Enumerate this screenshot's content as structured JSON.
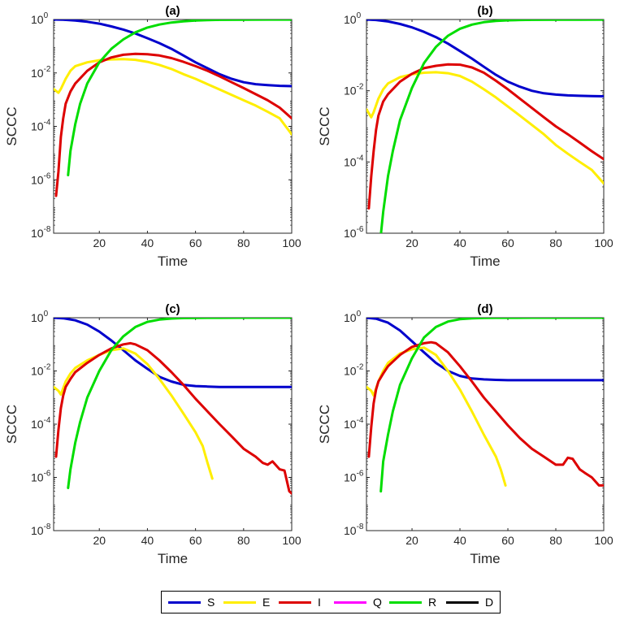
{
  "colors": {
    "S": "#0000cc",
    "E": "#ffee00",
    "I": "#dd0000",
    "Q": "#ff00ff",
    "R": "#00dd00",
    "D": "#000000"
  },
  "legend": [
    {
      "key": "S",
      "label": "S"
    },
    {
      "key": "E",
      "label": "E"
    },
    {
      "key": "I",
      "label": "I"
    },
    {
      "key": "Q",
      "label": "Q"
    },
    {
      "key": "R",
      "label": "R"
    },
    {
      "key": "D",
      "label": "D"
    }
  ],
  "chart_data": [
    {
      "type": "line",
      "title": "(a)",
      "xlabel": "Time",
      "ylabel": "SCCC",
      "xlim": [
        1,
        100
      ],
      "ylim_exp": [
        -8,
        0
      ],
      "xticks": [
        20,
        40,
        60,
        80,
        100
      ],
      "yticks_exp": [
        -8,
        -6,
        -4,
        -2,
        0
      ],
      "series": [
        {
          "name": "S",
          "x": [
            1,
            5,
            10,
            15,
            20,
            25,
            30,
            35,
            40,
            45,
            50,
            55,
            60,
            65,
            70,
            75,
            80,
            85,
            90,
            95,
            100
          ],
          "y": [
            1,
            0.98,
            0.92,
            0.82,
            0.7,
            0.55,
            0.42,
            0.3,
            0.2,
            0.13,
            0.08,
            0.045,
            0.025,
            0.015,
            0.009,
            0.006,
            0.0045,
            0.0038,
            0.0035,
            0.0033,
            0.0032
          ]
        },
        {
          "name": "E",
          "x": [
            1,
            3,
            4,
            6,
            8,
            10,
            15,
            20,
            25,
            30,
            35,
            40,
            45,
            50,
            55,
            60,
            65,
            70,
            75,
            80,
            85,
            90,
            95,
            100
          ],
          "y": [
            0.0025,
            0.0018,
            0.0025,
            0.006,
            0.012,
            0.018,
            0.025,
            0.03,
            0.032,
            0.033,
            0.031,
            0.026,
            0.02,
            0.014,
            0.009,
            0.006,
            0.0038,
            0.0024,
            0.0015,
            0.00095,
            0.0006,
            0.00035,
            0.0002,
            5e-05
          ]
        },
        {
          "name": "I",
          "x": [
            2,
            3,
            4,
            5,
            6,
            8,
            10,
            15,
            20,
            25,
            30,
            35,
            40,
            45,
            50,
            55,
            60,
            65,
            70,
            75,
            80,
            85,
            90,
            95,
            100
          ],
          "y": [
            2.5e-07,
            2e-06,
            4e-05,
            0.0002,
            0.0007,
            0.002,
            0.004,
            0.012,
            0.025,
            0.038,
            0.048,
            0.052,
            0.05,
            0.045,
            0.036,
            0.026,
            0.018,
            0.012,
            0.0075,
            0.0045,
            0.0027,
            0.0016,
            0.00095,
            0.0005,
            0.0002
          ]
        },
        {
          "name": "R",
          "x": [
            7,
            8,
            10,
            12,
            15,
            20,
            25,
            30,
            35,
            40,
            45,
            50,
            55,
            60,
            65,
            70,
            80,
            90,
            100
          ],
          "y": [
            1.5e-06,
            1.2e-05,
            0.00012,
            0.0007,
            0.004,
            0.025,
            0.08,
            0.18,
            0.33,
            0.5,
            0.65,
            0.77,
            0.86,
            0.92,
            0.95,
            0.97,
            0.985,
            0.99,
            0.992
          ]
        }
      ]
    },
    {
      "type": "line",
      "title": "(b)",
      "xlabel": "Time",
      "ylabel": "SCCC",
      "xlim": [
        1,
        100
      ],
      "ylim_exp": [
        -6,
        0
      ],
      "xticks": [
        20,
        40,
        60,
        80,
        100
      ],
      "yticks_exp": [
        -6,
        -4,
        -2,
        0
      ],
      "series": [
        {
          "name": "S",
          "x": [
            1,
            5,
            10,
            15,
            20,
            25,
            30,
            35,
            40,
            45,
            50,
            55,
            60,
            65,
            70,
            75,
            80,
            85,
            90,
            95,
            100
          ],
          "y": [
            1,
            0.97,
            0.88,
            0.75,
            0.6,
            0.45,
            0.32,
            0.21,
            0.13,
            0.08,
            0.047,
            0.028,
            0.018,
            0.013,
            0.01,
            0.0085,
            0.0078,
            0.0074,
            0.0072,
            0.0071,
            0.007
          ]
        },
        {
          "name": "E",
          "x": [
            1,
            3,
            4,
            6,
            8,
            10,
            15,
            20,
            25,
            30,
            35,
            40,
            45,
            50,
            55,
            60,
            65,
            70,
            75,
            80,
            85,
            90,
            95,
            100
          ],
          "y": [
            0.003,
            0.0018,
            0.0025,
            0.006,
            0.011,
            0.016,
            0.024,
            0.029,
            0.032,
            0.033,
            0.031,
            0.026,
            0.018,
            0.011,
            0.0065,
            0.0036,
            0.002,
            0.0011,
            0.0006,
            0.0003,
            0.00017,
            0.0001,
            6e-05,
            2.5e-05
          ]
        },
        {
          "name": "I",
          "x": [
            2,
            3,
            4,
            5,
            6,
            8,
            10,
            15,
            20,
            25,
            30,
            35,
            40,
            45,
            50,
            55,
            60,
            65,
            70,
            75,
            80,
            85,
            90,
            95,
            100
          ],
          "y": [
            5e-06,
            4e-05,
            0.0002,
            0.0008,
            0.002,
            0.005,
            0.008,
            0.018,
            0.03,
            0.043,
            0.05,
            0.055,
            0.054,
            0.045,
            0.032,
            0.019,
            0.011,
            0.006,
            0.0033,
            0.0018,
            0.001,
            0.0006,
            0.00035,
            0.0002,
            0.00012
          ]
        },
        {
          "name": "R",
          "x": [
            7,
            8,
            10,
            12,
            15,
            20,
            25,
            30,
            35,
            40,
            45,
            50,
            55,
            60,
            65,
            70,
            80,
            90,
            100
          ],
          "y": [
            9e-07,
            4e-06,
            4e-05,
            0.0002,
            0.0015,
            0.012,
            0.06,
            0.17,
            0.35,
            0.55,
            0.72,
            0.84,
            0.91,
            0.95,
            0.97,
            0.98,
            0.99,
            0.992,
            0.993
          ]
        }
      ]
    },
    {
      "type": "line",
      "title": "(c)",
      "xlabel": "Time",
      "ylabel": "SCCC",
      "xlim": [
        1,
        100
      ],
      "ylim_exp": [
        -8,
        0
      ],
      "xticks": [
        20,
        40,
        60,
        80,
        100
      ],
      "yticks_exp": [
        -8,
        -6,
        -4,
        -2,
        0
      ],
      "series": [
        {
          "name": "S",
          "x": [
            1,
            5,
            10,
            15,
            20,
            25,
            30,
            35,
            40,
            45,
            50,
            55,
            60,
            65,
            70,
            80,
            90,
            100
          ],
          "y": [
            1,
            0.95,
            0.8,
            0.55,
            0.3,
            0.14,
            0.06,
            0.025,
            0.012,
            0.006,
            0.004,
            0.003,
            0.0027,
            0.0026,
            0.0025,
            0.0025,
            0.0025,
            0.0025
          ]
        },
        {
          "name": "E",
          "x": [
            1,
            3,
            4,
            6,
            8,
            10,
            15,
            20,
            25,
            30,
            35,
            40,
            45,
            50,
            55,
            60,
            63,
            65,
            67
          ],
          "y": [
            0.0025,
            0.0018,
            0.0013,
            0.004,
            0.008,
            0.013,
            0.025,
            0.04,
            0.06,
            0.07,
            0.045,
            0.018,
            0.005,
            0.0012,
            0.00025,
            5e-05,
            1.5e-05,
            3.5e-06,
            9e-07
          ]
        },
        {
          "name": "I",
          "x": [
            2,
            3,
            4,
            5,
            6,
            8,
            10,
            15,
            20,
            25,
            30,
            33,
            35,
            40,
            45,
            50,
            55,
            60,
            65,
            70,
            75,
            80,
            85,
            88,
            90,
            92,
            95,
            97,
            99,
            100
          ],
          "y": [
            6e-06,
            6e-05,
            0.0004,
            0.0012,
            0.0025,
            0.005,
            0.009,
            0.02,
            0.04,
            0.07,
            0.1,
            0.11,
            0.1,
            0.06,
            0.025,
            0.009,
            0.003,
            0.0009,
            0.0003,
            0.0001,
            3.5e-05,
            1.2e-05,
            6e-06,
            3.5e-06,
            3e-06,
            4e-06,
            2e-06,
            1.8e-06,
            3e-07,
            2.5e-07
          ]
        },
        {
          "name": "R",
          "x": [
            7,
            8,
            10,
            12,
            15,
            20,
            25,
            30,
            35,
            40,
            45,
            50,
            55,
            60,
            65,
            70,
            80,
            90,
            100
          ],
          "y": [
            4e-07,
            2e-06,
            2e-05,
            0.00012,
            0.001,
            0.01,
            0.06,
            0.2,
            0.45,
            0.7,
            0.85,
            0.93,
            0.97,
            0.985,
            0.99,
            0.995,
            0.997,
            0.998,
            0.998
          ]
        }
      ]
    },
    {
      "type": "line",
      "title": "(d)",
      "xlabel": "Time",
      "ylabel": "SCCC",
      "xlim": [
        1,
        100
      ],
      "ylim_exp": [
        -8,
        0
      ],
      "xticks": [
        20,
        40,
        60,
        80,
        100
      ],
      "yticks_exp": [
        -8,
        -6,
        -4,
        -2,
        0
      ],
      "series": [
        {
          "name": "S",
          "x": [
            1,
            5,
            10,
            15,
            20,
            25,
            30,
            35,
            40,
            45,
            50,
            55,
            60,
            70,
            80,
            90,
            100
          ],
          "y": [
            1,
            0.92,
            0.65,
            0.33,
            0.13,
            0.05,
            0.02,
            0.01,
            0.0065,
            0.0052,
            0.0048,
            0.0046,
            0.0045,
            0.0045,
            0.0045,
            0.0045,
            0.0045
          ]
        },
        {
          "name": "E",
          "x": [
            1,
            3,
            4,
            6,
            8,
            10,
            15,
            20,
            25,
            30,
            35,
            40,
            45,
            50,
            55,
            57,
            59
          ],
          "y": [
            0.0025,
            0.0018,
            0.0012,
            0.004,
            0.01,
            0.02,
            0.045,
            0.065,
            0.075,
            0.04,
            0.01,
            0.002,
            0.0003,
            4e-05,
            6e-06,
            2e-06,
            5e-07
          ]
        },
        {
          "name": "I",
          "x": [
            2,
            3,
            4,
            5,
            6,
            8,
            10,
            15,
            20,
            25,
            28,
            30,
            35,
            40,
            45,
            50,
            55,
            60,
            65,
            70,
            75,
            80,
            83,
            85,
            87,
            90,
            92,
            95,
            98,
            100
          ],
          "y": [
            6e-06,
            8e-05,
            0.0006,
            0.002,
            0.004,
            0.008,
            0.015,
            0.04,
            0.08,
            0.11,
            0.12,
            0.11,
            0.05,
            0.015,
            0.004,
            0.001,
            0.0003,
            9e-05,
            3e-05,
            1.2e-05,
            6e-06,
            3e-06,
            3e-06,
            5.5e-06,
            5e-06,
            2e-06,
            1.5e-06,
            1e-06,
            5e-07,
            5e-07
          ]
        },
        {
          "name": "R",
          "x": [
            7,
            8,
            10,
            12,
            15,
            20,
            25,
            30,
            35,
            40,
            45,
            50,
            55,
            60,
            70,
            80,
            90,
            100
          ],
          "y": [
            3e-07,
            4e-06,
            4e-05,
            0.0003,
            0.003,
            0.03,
            0.18,
            0.45,
            0.72,
            0.88,
            0.95,
            0.98,
            0.99,
            0.995,
            0.997,
            0.998,
            0.998,
            0.998
          ]
        }
      ]
    }
  ]
}
